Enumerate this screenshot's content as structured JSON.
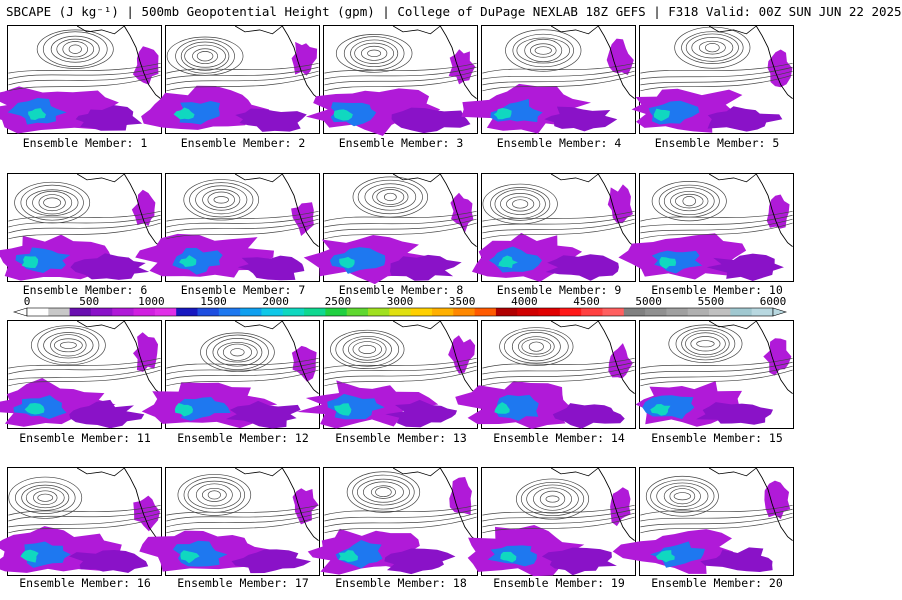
{
  "header": {
    "title": "SBCAPE (J kg⁻¹) | 500mb Geopotential Height (gpm) | College of DuPage NEXLAB 18Z GEFS | F318 Valid: 00Z SUN JUN 22 2025"
  },
  "panels": [
    {
      "label": "Ensemble Member: 1"
    },
    {
      "label": "Ensemble Member: 2"
    },
    {
      "label": "Ensemble Member: 3"
    },
    {
      "label": "Ensemble Member: 4"
    },
    {
      "label": "Ensemble Member: 5"
    },
    {
      "label": "Ensemble Member: 6"
    },
    {
      "label": "Ensemble Member: 7"
    },
    {
      "label": "Ensemble Member: 8"
    },
    {
      "label": "Ensemble Member: 9"
    },
    {
      "label": "Ensemble Member: 10"
    },
    {
      "label": "Ensemble Member: 11"
    },
    {
      "label": "Ensemble Member: 12"
    },
    {
      "label": "Ensemble Member: 13"
    },
    {
      "label": "Ensemble Member: 14"
    },
    {
      "label": "Ensemble Member: 15"
    },
    {
      "label": "Ensemble Member: 16"
    },
    {
      "label": "Ensemble Member: 17"
    },
    {
      "label": "Ensemble Member: 18"
    },
    {
      "label": "Ensemble Member: 19"
    },
    {
      "label": "Ensemble Member: 20"
    }
  ],
  "colorbar": {
    "ticks": [
      "0",
      "500",
      "1000",
      "1500",
      "2000",
      "2500",
      "3000",
      "3500",
      "4000",
      "4500",
      "5000",
      "5500",
      "6000"
    ],
    "colors": [
      "#ffffff",
      "#c8c8c8",
      "#6a0fb0",
      "#8a12c8",
      "#b01ad8",
      "#d020e0",
      "#e030e8",
      "#1818c0",
      "#1e4ee0",
      "#1e78f0",
      "#10a0f0",
      "#10c8e8",
      "#10d8c0",
      "#10d890",
      "#20d040",
      "#60d830",
      "#a0e020",
      "#e0e010",
      "#ffd000",
      "#ffb000",
      "#ff8800",
      "#ff5a00",
      "#b00000",
      "#d00000",
      "#e00000",
      "#ff1818",
      "#ff4040",
      "#ff6060",
      "#808080",
      "#909090",
      "#a0a0a0",
      "#b0b0b0",
      "#c0c0c0",
      "#a0c8d0",
      "#b8d8e0"
    ],
    "range": [
      0,
      6000
    ]
  }
}
